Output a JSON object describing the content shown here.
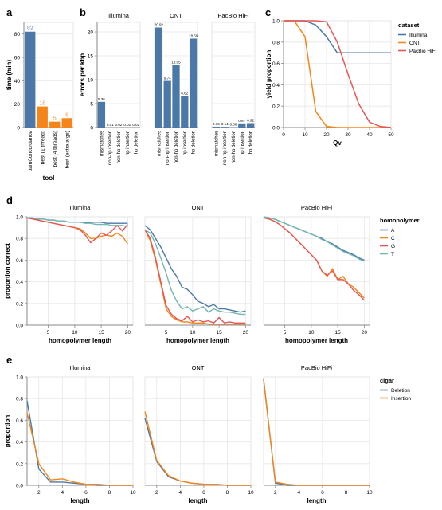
{
  "colors": {
    "bar_blue": "#4c78a8",
    "bar_orange": "#f58518",
    "illumina": "#4c78a8",
    "ont": "#f58518",
    "pacbio": "#e45756",
    "hp_A": "#4c78a8",
    "hp_C": "#f58518",
    "hp_G": "#e45756",
    "hp_T": "#72b7b2",
    "deletion": "#4c78a8",
    "insertion": "#f58518",
    "grid": "#e6e6e6",
    "axis": "#888888",
    "text": "#000000"
  },
  "chart_data": [
    {
      "panel": "a",
      "type": "bar",
      "xlabel": "tool",
      "ylabel": "time (min)",
      "ylim": [
        0,
        90
      ],
      "yticks": [
        0,
        20,
        40,
        60,
        80
      ],
      "categories": [
        "bamConcordance",
        "best (1 thread)",
        "best (4 threads)",
        "best (extra args)"
      ],
      "values": [
        82,
        18,
        5,
        8
      ],
      "value_labels": [
        "82",
        "18",
        "5",
        "8"
      ],
      "bar_colors": [
        "bar_blue",
        "bar_orange",
        "bar_orange",
        "bar_orange"
      ]
    },
    {
      "panel": "b",
      "type": "bar",
      "ylabel": "errors per kbp",
      "ylim": [
        0,
        22
      ],
      "yticks": [
        0,
        5,
        10,
        15,
        20
      ],
      "categories": [
        "mismatches",
        "non-hp insertion",
        "non-hp deletion",
        "hp insertion",
        "hp deletion"
      ],
      "facets": [
        {
          "name": "Illumina",
          "values": [
            5.36,
            0.01,
            0.02,
            0.01,
            0.02
          ],
          "value_labels": [
            "5.36",
            "0.01",
            "0.02",
            "0.01",
            "0.02"
          ]
        },
        {
          "name": "ONT",
          "values": [
            20.92,
            9.74,
            13.05,
            6.62,
            18.59
          ],
          "value_labels": [
            "20.92",
            "9.74",
            "13.05",
            "6.62",
            "18.59"
          ]
        },
        {
          "name": "PacBio HiFi",
          "values": [
            0.16,
            0.14,
            0.08,
            0.87,
            0.92
          ],
          "value_labels": [
            "0.16",
            "0.14",
            "0.08",
            "0.87",
            "0.92"
          ]
        }
      ]
    },
    {
      "panel": "c",
      "type": "line",
      "xlabel": "Qv",
      "ylabel": "yield proportion",
      "xlim": [
        0,
        50
      ],
      "ylim": [
        0,
        1
      ],
      "xticks": [
        0,
        10,
        20,
        30,
        40,
        50
      ],
      "yticks": [
        0,
        0.2,
        0.4,
        0.6,
        0.8,
        1.0
      ],
      "legend_title": "dataset",
      "x": [
        0,
        5,
        10,
        15,
        20,
        25,
        30,
        35,
        40,
        45,
        50
      ],
      "series": [
        {
          "name": "Illumina",
          "color": "illumina",
          "values": [
            1.0,
            1.0,
            1.0,
            0.96,
            0.85,
            0.7,
            0.7,
            0.7,
            0.7,
            0.7,
            0.7
          ]
        },
        {
          "name": "ONT",
          "color": "ont",
          "values": [
            1.0,
            1.0,
            0.85,
            0.15,
            0.01,
            0.0,
            0.0,
            0.0,
            0.0,
            0.0,
            0.0
          ]
        },
        {
          "name": "PacBio HiFi",
          "color": "pacbio",
          "values": [
            1.0,
            1.0,
            1.0,
            1.0,
            0.99,
            0.8,
            0.5,
            0.22,
            0.05,
            0.01,
            0.0
          ]
        }
      ]
    },
    {
      "panel": "d",
      "type": "line",
      "xlabel": "homopolymer length",
      "ylabel": "proportion correct",
      "xlim": [
        1,
        21
      ],
      "ylim": [
        0,
        1
      ],
      "xticks": [
        5,
        10,
        15,
        20
      ],
      "yticks": [
        0,
        0.2,
        0.4,
        0.6,
        0.8,
        1.0
      ],
      "legend_title": "homopolymer",
      "x": [
        1,
        2,
        3,
        4,
        5,
        6,
        7,
        8,
        9,
        10,
        11,
        12,
        13,
        14,
        15,
        16,
        17,
        18,
        19,
        20
      ],
      "facets": [
        {
          "name": "Illumina",
          "series": [
            {
              "name": "A",
              "color": "hp_A",
              "values": [
                0.99,
                0.99,
                0.98,
                0.98,
                0.97,
                0.97,
                0.96,
                0.96,
                0.95,
                0.95,
                0.95,
                0.95,
                0.95,
                0.95,
                0.95,
                0.94,
                0.94,
                0.94,
                0.94,
                0.94
              ]
            },
            {
              "name": "C",
              "color": "hp_C",
              "values": [
                0.99,
                0.98,
                0.97,
                0.96,
                0.95,
                0.94,
                0.93,
                0.92,
                0.91,
                0.9,
                0.89,
                0.85,
                0.8,
                0.8,
                0.82,
                0.83,
                0.82,
                0.85,
                0.82,
                0.75
              ]
            },
            {
              "name": "G",
              "color": "hp_G",
              "values": [
                0.99,
                0.98,
                0.97,
                0.96,
                0.95,
                0.94,
                0.93,
                0.92,
                0.91,
                0.9,
                0.88,
                0.83,
                0.76,
                0.8,
                0.85,
                0.83,
                0.87,
                0.92,
                0.87,
                0.93
              ]
            },
            {
              "name": "T",
              "color": "hp_T",
              "values": [
                0.99,
                0.99,
                0.98,
                0.98,
                0.97,
                0.97,
                0.96,
                0.96,
                0.95,
                0.95,
                0.95,
                0.94,
                0.94,
                0.93,
                0.93,
                0.93,
                0.92,
                0.92,
                0.92,
                0.91
              ]
            }
          ]
        },
        {
          "name": "ONT",
          "series": [
            {
              "name": "A",
              "color": "hp_A",
              "values": [
                0.92,
                0.88,
                0.8,
                0.72,
                0.62,
                0.52,
                0.45,
                0.35,
                0.33,
                0.28,
                0.22,
                0.2,
                0.17,
                0.19,
                0.15,
                0.15,
                0.14,
                0.13,
                0.12,
                0.13
              ]
            },
            {
              "name": "C",
              "color": "hp_C",
              "values": [
                0.88,
                0.78,
                0.6,
                0.38,
                0.15,
                0.08,
                0.05,
                0.03,
                0.03,
                0.02,
                0.02,
                0.02,
                0.01,
                0.01,
                0.01,
                0.01,
                0.01,
                0.01,
                0.01,
                0.01
              ]
            },
            {
              "name": "G",
              "color": "hp_G",
              "values": [
                0.88,
                0.8,
                0.62,
                0.4,
                0.18,
                0.1,
                0.06,
                0.04,
                0.08,
                0.03,
                0.05,
                0.03,
                0.04,
                0.02,
                0.07,
                0.02,
                0.03,
                0.02,
                0.02,
                0.02
              ]
            },
            {
              "name": "T",
              "color": "hp_T",
              "values": [
                0.88,
                0.85,
                0.75,
                0.62,
                0.48,
                0.32,
                0.22,
                0.15,
                0.17,
                0.13,
                0.15,
                0.17,
                0.12,
                0.15,
                0.13,
                0.12,
                0.12,
                0.11,
                0.1,
                0.1
              ]
            }
          ]
        },
        {
          "name": "PacBio HiFi",
          "series": [
            {
              "name": "A",
              "color": "hp_A",
              "values": [
                1.0,
                0.99,
                0.98,
                0.96,
                0.94,
                0.92,
                0.9,
                0.88,
                0.86,
                0.84,
                0.82,
                0.8,
                0.77,
                0.75,
                0.72,
                0.69,
                0.67,
                0.65,
                0.62,
                0.6
              ]
            },
            {
              "name": "C",
              "color": "hp_C",
              "values": [
                0.99,
                0.98,
                0.96,
                0.93,
                0.89,
                0.85,
                0.8,
                0.75,
                0.7,
                0.65,
                0.6,
                0.5,
                0.45,
                0.52,
                0.42,
                0.45,
                0.38,
                0.35,
                0.3,
                0.25
              ]
            },
            {
              "name": "G",
              "color": "hp_G",
              "values": [
                0.99,
                0.98,
                0.96,
                0.93,
                0.89,
                0.85,
                0.8,
                0.75,
                0.7,
                0.65,
                0.6,
                0.5,
                0.46,
                0.5,
                0.42,
                0.42,
                0.38,
                0.32,
                0.28,
                0.23
              ]
            },
            {
              "name": "T",
              "color": "hp_T",
              "values": [
                1.0,
                0.99,
                0.98,
                0.96,
                0.94,
                0.92,
                0.9,
                0.88,
                0.86,
                0.84,
                0.82,
                0.79,
                0.77,
                0.74,
                0.71,
                0.68,
                0.66,
                0.64,
                0.61,
                0.59
              ]
            }
          ]
        }
      ]
    },
    {
      "panel": "e",
      "type": "line",
      "xlabel": "length",
      "ylabel": "proportion",
      "xlim": [
        1,
        10
      ],
      "ylim": [
        0,
        1
      ],
      "xticks": [
        2,
        4,
        6,
        8,
        10
      ],
      "yticks": [
        0,
        0.2,
        0.4,
        0.6,
        0.8,
        1.0
      ],
      "legend_title": "cigar",
      "x": [
        1,
        2,
        3,
        4,
        5,
        6,
        7,
        8,
        9,
        10
      ],
      "facets": [
        {
          "name": "Illumina",
          "series": [
            {
              "name": "Deletion",
              "color": "deletion",
              "values": [
                0.78,
                0.15,
                0.03,
                0.03,
                0.02,
                0.01,
                0.0,
                0.0,
                0.0,
                0.0
              ]
            },
            {
              "name": "Insertion",
              "color": "insertion",
              "values": [
                0.67,
                0.2,
                0.05,
                0.06,
                0.03,
                0.01,
                0.01,
                0.0,
                0.0,
                0.0
              ]
            }
          ]
        },
        {
          "name": "ONT",
          "series": [
            {
              "name": "Deletion",
              "color": "deletion",
              "values": [
                0.62,
                0.22,
                0.08,
                0.04,
                0.02,
                0.01,
                0.01,
                0.0,
                0.0,
                0.0
              ]
            },
            {
              "name": "Insertion",
              "color": "insertion",
              "values": [
                0.68,
                0.23,
                0.09,
                0.04,
                0.02,
                0.01,
                0.01,
                0.0,
                0.0,
                0.0
              ]
            }
          ]
        },
        {
          "name": "PacBio HiFi",
          "series": [
            {
              "name": "Deletion",
              "color": "deletion",
              "values": [
                0.98,
                0.02,
                0.0,
                0.0,
                0.0,
                0.0,
                0.0,
                0.0,
                0.0,
                0.0
              ]
            },
            {
              "name": "Insertion",
              "color": "insertion",
              "values": [
                0.97,
                0.03,
                0.01,
                0.0,
                0.0,
                0.0,
                0.0,
                0.0,
                0.0,
                0.0
              ]
            }
          ]
        }
      ]
    }
  ]
}
